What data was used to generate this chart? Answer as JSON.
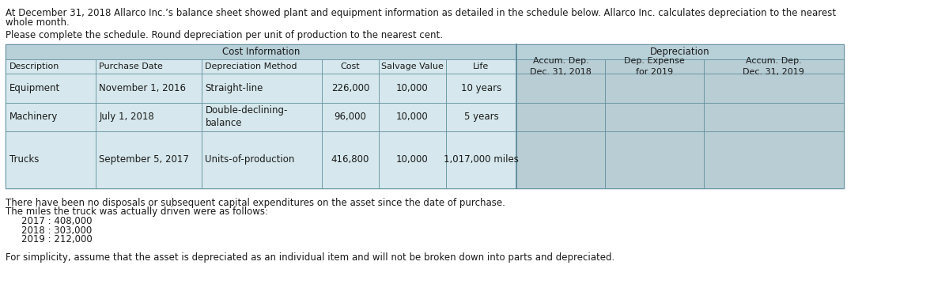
{
  "title_line1": "At December 31, 2018 Allarco Inc.’s balance sheet showed plant and equipment information as detailed in the schedule below. Allarco Inc. calculates depreciation to the nearest",
  "title_line2": "whole month.",
  "subtitle": "Please complete the schedule. Round depreciation per unit of production to the nearest cent.",
  "table_header_left": "Cost Information",
  "table_header_right": "Depreciation",
  "col_headers": [
    "Description",
    "Purchase Date",
    "Depreciation Method",
    "Cost",
    "Salvage Value",
    "Life",
    "Accum. Dep.\nDec. 31, 2018",
    "Dep. Expense\nfor 2019",
    "Accum. Dep.\nDec. 31, 2019"
  ],
  "rows": [
    [
      "Equipment",
      "November 1, 2016",
      "Straight-line",
      "226,000",
      "10,000",
      "10 years",
      "",
      "",
      ""
    ],
    [
      "Machinery",
      "July 1, 2018",
      "Double-declining-\nbalance",
      "96,000",
      "10,000",
      "5 years",
      "",
      "",
      ""
    ],
    [
      "Trucks",
      "September 5, 2017",
      "Units-of-production",
      "416,800",
      "10,000",
      "1,017,000 miles",
      "",
      "",
      ""
    ]
  ],
  "footer_lines": [
    "There have been no disposals or subsequent capital expenditures on the asset since the date of purchase.",
    "The miles the truck was actually driven were as follows:",
    "2017 : 408,000",
    "2018 : 303,000",
    "2019 : 212,000",
    "",
    "For simplicity, assume that the asset is depreciated as an individual item and will not be broken down into parts and depreciated."
  ],
  "header_bg": "#b8d0d8",
  "cell_bg": "#d6e8ed",
  "shaded_bg": "#b8cdd4",
  "white_bg": "#ffffff",
  "border_color": "#5a8a9a",
  "text_color": "#1a1a1a",
  "font_size": 8.5,
  "header_font_size": 8.5
}
